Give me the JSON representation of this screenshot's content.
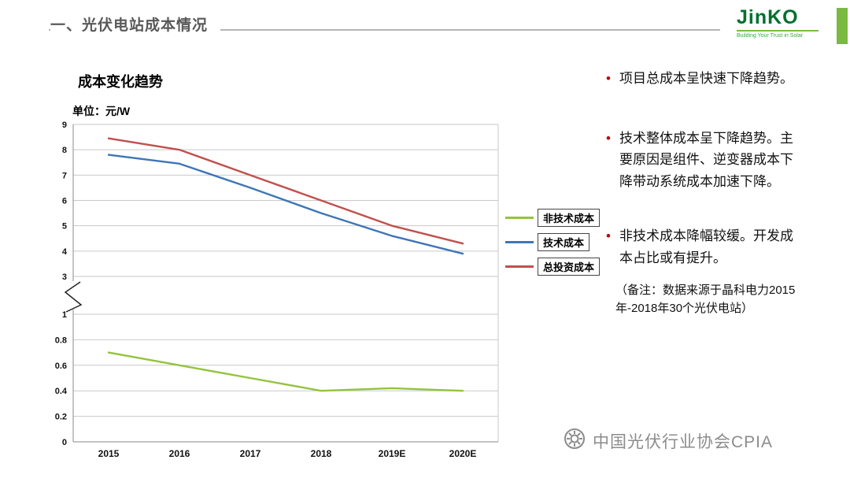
{
  "header": {
    "title": "一、光伏电站成本情况"
  },
  "logo": {
    "name": "JinKO",
    "tagline": "Building Your Trust in Solar"
  },
  "chart_data": {
    "type": "line",
    "title": "成本变化趋势",
    "unit_label": "单位：元/W",
    "xlabel": "",
    "ylabel": "单位：元/W",
    "categories": [
      "2015",
      "2016",
      "2017",
      "2018",
      "2019E",
      "2020E"
    ],
    "series": [
      {
        "name": "非技术成本",
        "color": "#94c33d",
        "values": [
          0.7,
          0.6,
          0.5,
          0.4,
          0.42,
          0.4
        ]
      },
      {
        "name": "技术成本",
        "color": "#3e76b5",
        "values": [
          7.8,
          7.45,
          6.5,
          5.5,
          4.6,
          3.9
        ]
      },
      {
        "name": "总投资成本",
        "color": "#c0504d",
        "values": [
          8.45,
          8.0,
          7.0,
          6.0,
          5.0,
          4.3
        ]
      }
    ],
    "axis_break": {
      "upper_range": [
        3,
        9
      ],
      "lower_range": [
        0,
        1
      ],
      "upper_ticks": [
        9,
        8,
        7,
        6,
        5,
        4,
        3
      ],
      "lower_ticks": [
        1,
        0.8,
        0.6,
        0.4,
        0.2,
        0
      ]
    },
    "legend_position": "right",
    "grid": true
  },
  "notes": {
    "bullets": [
      "项目总成本呈快速下降趋势。",
      "技术整体成本呈下降趋势。主要原因是组件、逆变器成本下降带动系统成本加速下降。",
      "非技术成本降幅较缓。开发成本占比或有提升。"
    ],
    "remark": "（备注：数据来源于晶科电力2015年-2018年30个光伏电站）"
  },
  "watermark": {
    "text": "中国光伏行业协会CPIA"
  }
}
